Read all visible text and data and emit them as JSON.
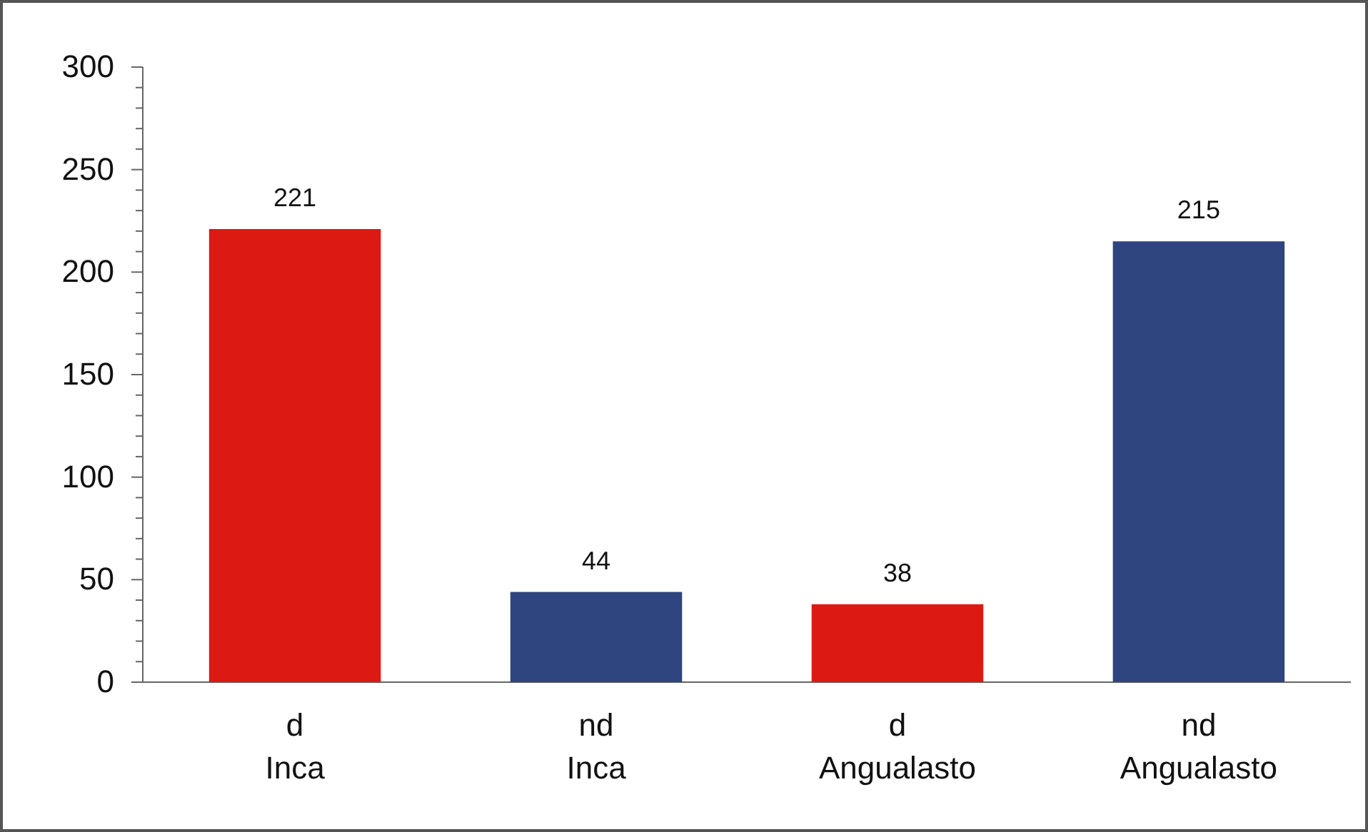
{
  "chart_data": {
    "type": "bar",
    "categories": [
      "d\nInca",
      "nd\nInca",
      "d\nAngualasto",
      "nd\nAngualasto"
    ],
    "values": [
      221,
      44,
      38,
      215
    ],
    "colors": [
      "#dc1a13",
      "#2f4580",
      "#dc1a13",
      "#2f4580"
    ],
    "ylim": [
      0,
      300
    ],
    "yticks": [
      0,
      {
        "value": 10,
        "label": null
      },
      {
        "value": 20,
        "label": null
      },
      {
        "value": 30,
        "label": null
      },
      {
        "value": 40,
        "label": null
      },
      50,
      {
        "value": 60,
        "label": null
      },
      {
        "value": 70,
        "label": null
      },
      {
        "value": 80,
        "label": null
      },
      {
        "value": 90,
        "label": null
      },
      100,
      {
        "value": 110,
        "label": null
      },
      {
        "value": 120,
        "label": null
      },
      {
        "value": 130,
        "label": null
      },
      {
        "value": 140,
        "label": null
      },
      150,
      {
        "value": 160,
        "label": null
      },
      {
        "value": 170,
        "label": null
      },
      {
        "value": 180,
        "label": null
      },
      {
        "value": 190,
        "label": null
      },
      200,
      {
        "value": 210,
        "label": null
      },
      {
        "value": 220,
        "label": null
      },
      {
        "value": 230,
        "label": null
      },
      {
        "value": 240,
        "label": null
      },
      250,
      {
        "value": 260,
        "label": null
      },
      {
        "value": 270,
        "label": null
      },
      {
        "value": 280,
        "label": null
      },
      {
        "value": 290,
        "label": null
      },
      300
    ],
    "data_labels": true
  }
}
